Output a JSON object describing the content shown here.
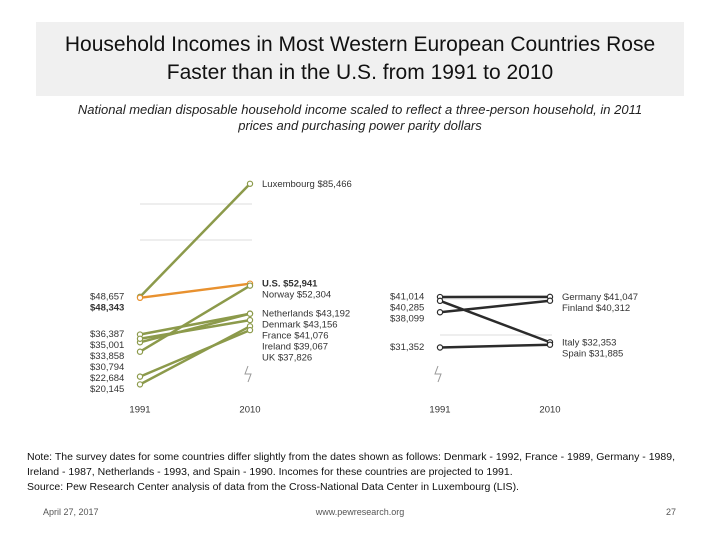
{
  "title": "Household Incomes in Most Western European Countries Rose Faster than in the U.S. from 1991 to 2010",
  "subtitle": "National median disposable household income scaled to reflect a three-person household, in 2011 prices and purchasing power parity dollars",
  "note": "Note: The survey dates for some countries differ slightly from the dates shown as follows: Denmark - 1992, France - 1989, Germany - 1989, Ireland - 1987, Netherlands - 1993, and Spain - 1990. Incomes for these countries are projected to 1991.",
  "source": "Source: Pew Research Center analysis of data from the Cross-National Data Center in Luxembourg (LIS).",
  "footer": {
    "date": "April 27, 2017",
    "url": "www.pewresearch.org",
    "page": "27"
  },
  "chart_data": [
    {
      "type": "line",
      "categories": [
        "1991",
        "2010"
      ],
      "ylim": [
        18000,
        88000
      ],
      "series": [
        {
          "name": "Luxembourg",
          "color": "#8c9a4b",
          "values": [
            48657,
            85466
          ],
          "value_labels": [
            "$48,657",
            "$85,466"
          ]
        },
        {
          "name": "U.S.",
          "color": "#e8912f",
          "values": [
            48343,
            52941
          ],
          "value_labels": [
            "$48,343",
            "$52,941"
          ]
        },
        {
          "name": "Norway",
          "color": "#8c9a4b",
          "values": [
            30794,
            52304
          ],
          "value_labels": [
            "$30,794",
            "$52,304"
          ]
        },
        {
          "name": "Netherlands",
          "color": "#8c9a4b",
          "values": [
            33858,
            43192
          ],
          "value_labels": [
            "$33,858",
            "$43,192"
          ]
        },
        {
          "name": "Denmark",
          "color": "#8c9a4b",
          "values": [
            36387,
            43156
          ],
          "value_labels": [
            "$36,387",
            "$43,156"
          ]
        },
        {
          "name": "France",
          "color": "#8c9a4b",
          "values": [
            35001,
            41076
          ],
          "value_labels": [
            "$35,001",
            "$41,076"
          ]
        },
        {
          "name": "Ireland",
          "color": "#8c9a4b",
          "values": [
            20145,
            39067
          ],
          "value_labels": [
            "$20,145",
            "$39,067"
          ]
        },
        {
          "name": "UK",
          "color": "#8c9a4b",
          "values": [
            22684,
            37826
          ],
          "value_labels": [
            "$22,684",
            "$37,826"
          ]
        }
      ]
    },
    {
      "type": "line",
      "categories": [
        "1991",
        "2010"
      ],
      "ylim": [
        28000,
        46000
      ],
      "series": [
        {
          "name": "Germany",
          "color": "#2b2b2b",
          "values": [
            41014,
            41047
          ],
          "value_labels": [
            "$41,014",
            "$41,047"
          ]
        },
        {
          "name": "Finland",
          "color": "#2b2b2b",
          "values": [
            38099,
            40312
          ],
          "value_labels": [
            "$38,099",
            "$40,312"
          ]
        },
        {
          "name": "Italy",
          "color": "#2b2b2b",
          "values": [
            40285,
            32353
          ],
          "value_labels": [
            "$40,285",
            "$32,353"
          ]
        },
        {
          "name": "Spain",
          "color": "#2b2b2b",
          "values": [
            31352,
            31885
          ],
          "value_labels": [
            "$31,352",
            "$31,885"
          ]
        }
      ]
    }
  ]
}
